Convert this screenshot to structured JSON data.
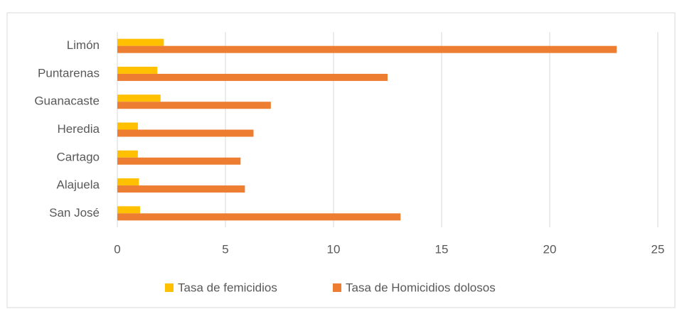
{
  "chart_data": {
    "type": "bar",
    "orientation": "horizontal",
    "categories": [
      "Limón",
      "Puntarenas",
      "Guanacaste",
      "Heredia",
      "Cartago",
      "Alajuela",
      "San José"
    ],
    "series": [
      {
        "name": "Tasa de femicidios",
        "color": "#ffc000",
        "values": [
          2.15,
          1.85,
          2.0,
          0.95,
          0.95,
          1.0,
          1.05
        ]
      },
      {
        "name": "Tasa de Homicidios dolosos",
        "color": "#ed7d31",
        "values": [
          23.1,
          12.5,
          7.1,
          6.3,
          5.7,
          5.9,
          13.1
        ]
      }
    ],
    "xlim": [
      0,
      25
    ],
    "xticks": [
      0,
      5,
      10,
      15,
      20,
      25
    ],
    "grid": true,
    "legend": "bottom"
  }
}
